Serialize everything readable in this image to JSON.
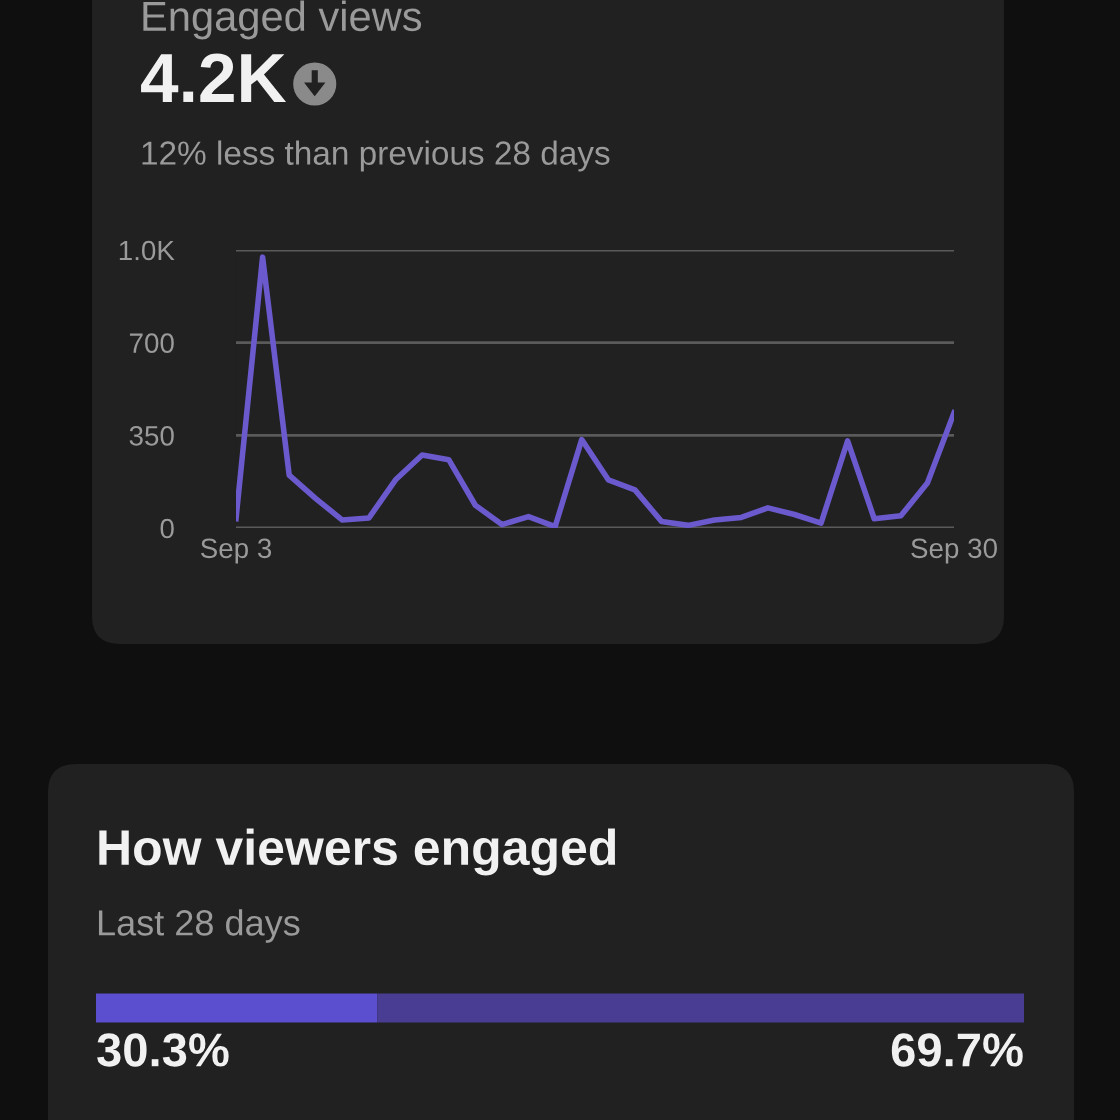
{
  "chart_data": [
    {
      "type": "line",
      "title": "Engaged views",
      "subtitle": "4.2K",
      "annotations": [
        "12% less than previous 28 days"
      ],
      "categories": [
        "Sep 3",
        null,
        null,
        null,
        null,
        null,
        null,
        null,
        null,
        null,
        null,
        null,
        null,
        null,
        null,
        null,
        null,
        null,
        null,
        null,
        null,
        null,
        null,
        null,
        null,
        null,
        null,
        "Sep 30"
      ],
      "series": [
        {
          "color": "#6a5acd",
          "values": [
            35,
            1023,
            200,
            111,
            30,
            38,
            182,
            276,
            258,
            86,
            13,
            43,
            5,
            334,
            182,
            144,
            25,
            10,
            30,
            40,
            76,
            51,
            18,
            329,
            35,
            46,
            170,
            435
          ]
        }
      ],
      "ylim": [
        0,
        1050
      ],
      "yticks": [
        0,
        350,
        700,
        {
          "value": 1050,
          "label": "1.0K"
        }
      ],
      "grid": "y",
      "marker": "none",
      "line_style": "solid"
    },
    {
      "type": "bar",
      "orientation": "horizontal",
      "stacked": true,
      "title": "How viewers engaged",
      "subtitle": "Last 28 days",
      "categories": [
        null
      ],
      "series": [
        {
          "color": "#5b4fcf",
          "values": [
            30.3
          ],
          "value_labels": [
            "30.3%"
          ]
        },
        {
          "color": "#483d93",
          "values": [
            69.7
          ],
          "value_labels": [
            "69.7%"
          ]
        }
      ],
      "xlim": [
        0,
        100
      ],
      "tick_labels": false
    }
  ]
}
